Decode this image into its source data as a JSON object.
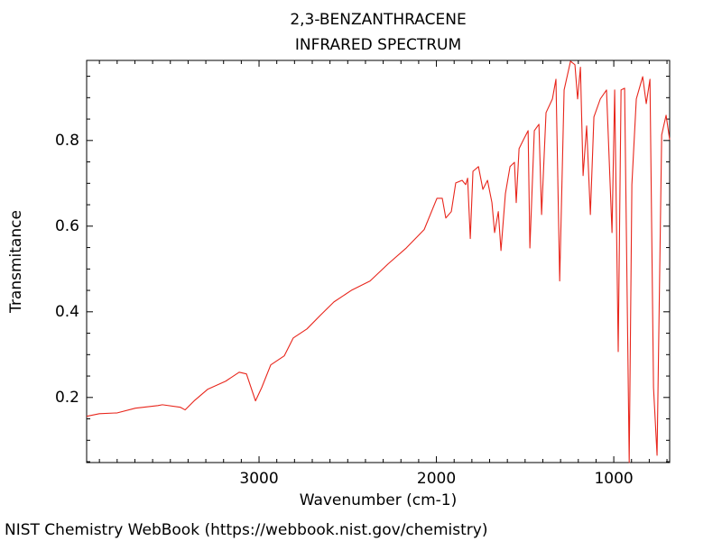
{
  "chart_data": {
    "type": "line",
    "title": "2,3-BENZANTHRACENE",
    "subtitle": "INFRARED SPECTRUM",
    "xlabel": "Wavenumber (cm-1)",
    "ylabel": "Transmitance",
    "footer": "NIST Chemistry WebBook (https://webbook.nist.gov/chemistry)",
    "color": "#e8261c",
    "xlim": [
      3972,
      685
    ],
    "ylim": [
      0.048,
      0.987
    ],
    "xticks": [
      3000,
      2000,
      1000
    ],
    "yticks": [
      0.2,
      0.4,
      0.6,
      0.8
    ],
    "xminorticks": [
      3900,
      3800,
      3700,
      3600,
      3500,
      3400,
      3300,
      3200,
      3100,
      2900,
      2800,
      2700,
      2600,
      2500,
      2400,
      2300,
      2200,
      2100,
      1900,
      1800,
      1700,
      1600,
      1500,
      1400,
      1300,
      1200,
      1100,
      900,
      800,
      700
    ],
    "yminorticks": [
      0.05,
      0.1,
      0.15,
      0.25,
      0.3,
      0.35,
      0.45,
      0.5,
      0.55,
      0.65,
      0.7,
      0.75,
      0.85,
      0.9,
      0.95
    ],
    "x": [
      3972,
      3900,
      3799,
      3697,
      3570,
      3545,
      3443,
      3417,
      3366,
      3290,
      3188,
      3112,
      3071,
      3020,
      2985,
      2934,
      2858,
      2807,
      2730,
      2654,
      2578,
      2476,
      2374,
      2272,
      2170,
      2069,
      1997,
      1967,
      1947,
      1916,
      1891,
      1855,
      1835,
      1824,
      1809,
      1794,
      1763,
      1738,
      1712,
      1687,
      1672,
      1651,
      1636,
      1611,
      1585,
      1560,
      1550,
      1534,
      1509,
      1483,
      1473,
      1448,
      1422,
      1407,
      1382,
      1346,
      1326,
      1305,
      1280,
      1244,
      1219,
      1204,
      1188,
      1173,
      1153,
      1132,
      1112,
      1076,
      1041,
      1010,
      995,
      975,
      959,
      939,
      913,
      898,
      873,
      837,
      817,
      796,
      776,
      756,
      730,
      705,
      685
    ],
    "values": [
      0.156,
      0.162,
      0.164,
      0.175,
      0.181,
      0.183,
      0.177,
      0.171,
      0.192,
      0.219,
      0.238,
      0.259,
      0.255,
      0.192,
      0.223,
      0.276,
      0.297,
      0.339,
      0.36,
      0.392,
      0.423,
      0.451,
      0.472,
      0.512,
      0.549,
      0.592,
      0.665,
      0.665,
      0.619,
      0.634,
      0.701,
      0.707,
      0.697,
      0.712,
      0.571,
      0.728,
      0.739,
      0.686,
      0.707,
      0.655,
      0.585,
      0.634,
      0.543,
      0.676,
      0.739,
      0.749,
      0.655,
      0.781,
      0.802,
      0.823,
      0.549,
      0.823,
      0.838,
      0.627,
      0.865,
      0.897,
      0.943,
      0.472,
      0.918,
      0.985,
      0.977,
      0.897,
      0.971,
      0.718,
      0.834,
      0.627,
      0.855,
      0.897,
      0.918,
      0.585,
      0.918,
      0.307,
      0.918,
      0.922,
      0.048,
      0.697,
      0.897,
      0.949,
      0.886,
      0.943,
      0.223,
      0.065,
      0.813,
      0.859,
      0.802
    ]
  }
}
